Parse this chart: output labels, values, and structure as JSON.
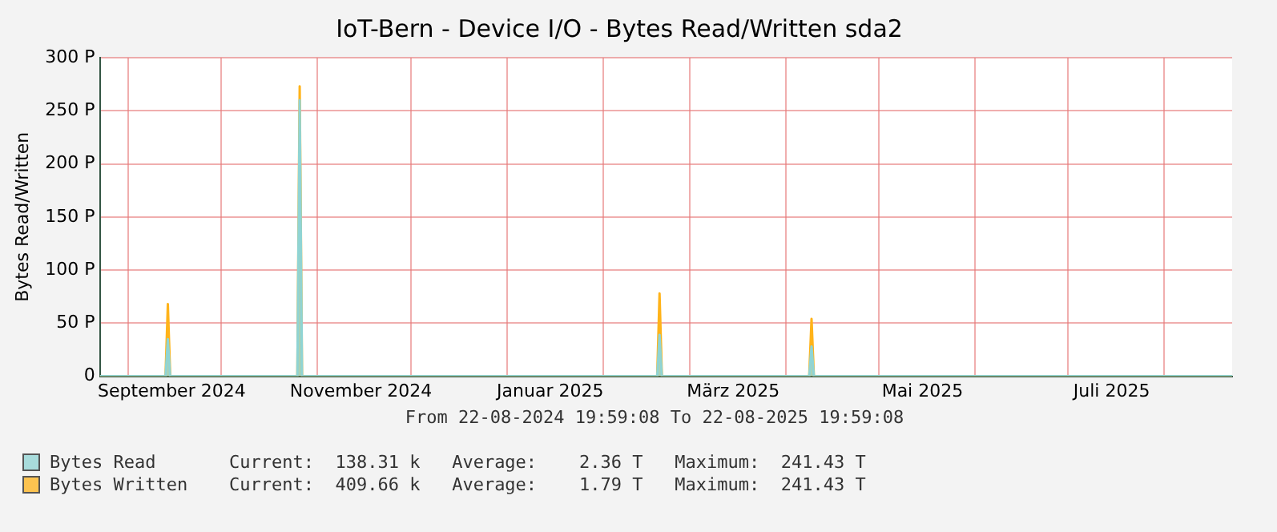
{
  "chart_data": {
    "type": "area",
    "title": "IoT-Bern - Device I/O - Bytes Read/Written sda2",
    "ylabel": "Bytes Read/Written",
    "xlim": [
      "2024-08-22T19:59",
      "2025-08-22T19:59"
    ],
    "xticks": [
      {
        "value": "2024-09-01",
        "label": null
      },
      {
        "value": "2024-09-15",
        "label": "September 2024"
      },
      {
        "value": "2024-10-01",
        "label": null
      },
      {
        "value": "2024-11-01",
        "label": null
      },
      {
        "value": "2024-11-15",
        "label": "November 2024"
      },
      {
        "value": "2024-12-01",
        "label": null
      },
      {
        "value": "2025-01-01",
        "label": null
      },
      {
        "value": "2025-01-15",
        "label": "Januar 2025"
      },
      {
        "value": "2025-02-01",
        "label": null
      },
      {
        "value": "2025-03-01",
        "label": null
      },
      {
        "value": "2025-03-15",
        "label": "März 2025"
      },
      {
        "value": "2025-04-01",
        "label": null
      },
      {
        "value": "2025-05-01",
        "label": null
      },
      {
        "value": "2025-05-15",
        "label": "Mai 2025"
      },
      {
        "value": "2025-06-01",
        "label": null
      },
      {
        "value": "2025-07-01",
        "label": null
      },
      {
        "value": "2025-07-15",
        "label": "Juli 2025"
      },
      {
        "value": "2025-08-01",
        "label": null
      }
    ],
    "ylim": [
      0,
      300
    ],
    "yticks": [
      0,
      {
        "value": 50,
        "label": "50 P"
      },
      {
        "value": 100,
        "label": "100 P"
      },
      {
        "value": 150,
        "label": "150 P"
      },
      {
        "value": 200,
        "label": "200 P"
      },
      {
        "value": 250,
        "label": "250 P"
      },
      {
        "value": 300,
        "label": "300 P"
      }
    ],
    "grid": true,
    "legend": "bottom",
    "series": [
      {
        "name": "Bytes Written",
        "color": "#ffb31a",
        "x": [
          "2024-08-22T19:59",
          "2024-09-13T00:00",
          "2024-09-13T18:00",
          "2024-09-14T12:00",
          "2024-10-25T12:00",
          "2024-10-26T06:00",
          "2024-10-27T00:00",
          "2025-02-18T12:00",
          "2025-02-19T06:00",
          "2025-02-20T00:00",
          "2025-04-08T12:00",
          "2025-04-09T06:00",
          "2025-04-10T00:00",
          "2025-08-22T19:59"
        ],
        "values": [
          0,
          0,
          68,
          0,
          0,
          273,
          0,
          0,
          78,
          0,
          0,
          54,
          0,
          0
        ]
      },
      {
        "name": "Bytes Read",
        "color": "#8fd4d4",
        "x": [
          "2024-08-22T19:59",
          "2024-09-13T00:00",
          "2024-09-13T18:00",
          "2024-09-14T12:00",
          "2024-10-25T12:00",
          "2024-10-26T06:00",
          "2024-10-27T00:00",
          "2025-02-18T12:00",
          "2025-02-19T06:00",
          "2025-02-20T00:00",
          "2025-04-08T12:00",
          "2025-04-09T06:00",
          "2025-04-10T00:00",
          "2025-08-22T19:59"
        ],
        "values": [
          0,
          0,
          35,
          0,
          0,
          260,
          0,
          0,
          39,
          0,
          0,
          28,
          0,
          0
        ]
      }
    ],
    "annotations": [
      "From 22-08-2024 19:59:08 To 22-08-2025 19:59:08",
      "Current:  409.66 k   Average:    1.79 T   Maximum:  241.43 T",
      "Current:  138.31 k   Average:    2.36 T   Maximum:  241.43 T"
    ]
  }
}
